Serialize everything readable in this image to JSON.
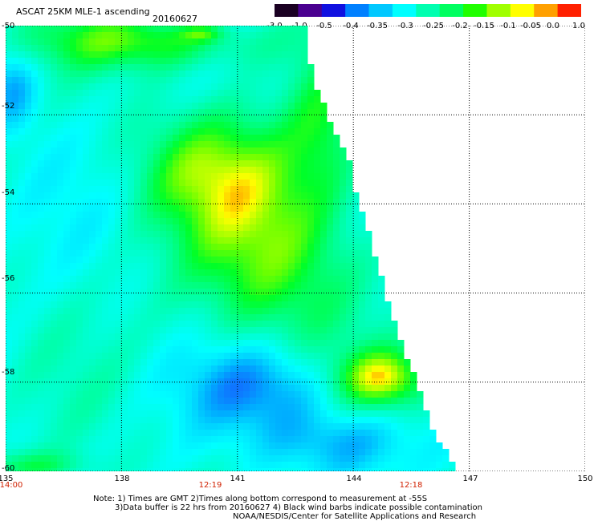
{
  "header": {
    "title": "ASCAT 25KM MLE-1 ascending",
    "date": "20160627"
  },
  "colorbar": {
    "ticks": [
      "-3.0",
      "-1.0",
      "-0.5",
      "-0.4",
      "-0.35",
      "-0.3",
      "-0.25",
      "-0.2",
      "-0.15",
      "-0.1",
      "-0.05",
      "0.0",
      "1.0"
    ],
    "colors": [
      "#1a0022",
      "#4a0090",
      "#1010e0",
      "#0080ff",
      "#00c8ff",
      "#00ffff",
      "#00ffb0",
      "#00ff60",
      "#20ff00",
      "#a0ff00",
      "#ffff00",
      "#ffa000",
      "#ff2000"
    ]
  },
  "axes": {
    "lat_labels": [
      "-50",
      "-52",
      "-54",
      "-56",
      "-58",
      "-60"
    ],
    "lon_labels": [
      "135",
      "138",
      "141",
      "144",
      "147",
      "150"
    ],
    "time_labels": [
      "14:00",
      "12:19",
      "12:18"
    ],
    "lat_range": [
      -50,
      -60
    ],
    "lon_range": [
      135,
      150
    ],
    "grid": true
  },
  "notes": {
    "line1": "Note: 1) Times are GMT 2)Times along bottom correspond to measurement at -55S",
    "line2": "3)Data buffer is 22 hrs from 20160627 4) Black wind barbs indicate possible contamination",
    "line3": "NOAA/NESDIS/Center for Satellite Applications and Research"
  }
}
